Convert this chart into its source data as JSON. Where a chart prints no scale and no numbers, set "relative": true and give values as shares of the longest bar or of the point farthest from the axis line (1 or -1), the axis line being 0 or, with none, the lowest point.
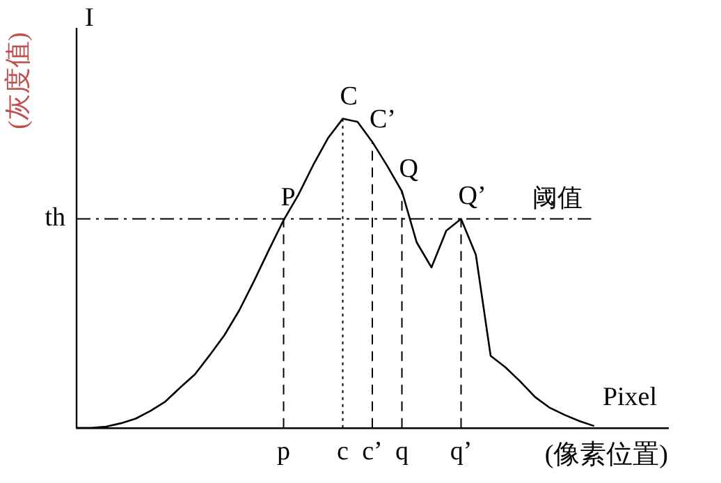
{
  "chart_data": {
    "type": "line",
    "relative": true,
    "xlabel": "(像素位置)",
    "ylabel": "(灰度值)",
    "categories": [
      null,
      null,
      null,
      null,
      null,
      null,
      null,
      null,
      null,
      null,
      null,
      null,
      null,
      null,
      "p",
      null,
      null,
      null,
      "c",
      null,
      "c’",
      null,
      "q",
      null,
      null,
      null,
      "q’",
      null,
      null,
      null,
      null,
      null,
      null,
      null,
      null,
      null,
      null,
      null,
      null,
      null,
      null
    ],
    "series": [
      {
        "color": "#000000",
        "values": [
          0,
          0,
          0.004,
          0.015,
          0.03,
          0.055,
          0.085,
          0.13,
          0.173,
          0.235,
          0.3,
          0.38,
          0.475,
          0.575,
          0.672,
          0.754,
          0.85,
          0.937,
          1,
          0.99,
          0.925,
          0.848,
          0.765,
          0.6,
          0.519,
          0.638,
          0.676,
          0.56,
          0.233,
          0.196,
          0.15,
          0.1,
          0.065,
          0.042,
          0.022,
          0.006,
          null,
          null,
          null,
          null,
          null
        ]
      }
    ],
    "ref_lines": [
      {
        "axis": "y",
        "value": 0.676,
        "label": "阈值",
        "line_style": "dashed",
        "color": "#000000"
      },
      {
        "axis": "x",
        "value": "p",
        "line_style": "dashed",
        "color": "#000000"
      },
      {
        "axis": "x",
        "value": "c",
        "line_style": "dotted",
        "color": "#000000"
      },
      {
        "axis": "x",
        "value": "c’",
        "line_style": "dashed",
        "color": "#000000"
      },
      {
        "axis": "x",
        "value": "q",
        "line_style": "dashed",
        "color": "#000000"
      },
      {
        "axis": "x",
        "value": "q’",
        "line_style": "dashed",
        "color": "#000000"
      }
    ],
    "annotations": [
      "th",
      "I",
      "Pixel",
      {
        "text": "P",
        "x": "p",
        "y": 0.672
      },
      {
        "text": "C",
        "x": "c",
        "y": 1
      },
      {
        "text": "C’",
        "x": "c’",
        "y": 0.925
      },
      {
        "text": "Q",
        "x": "q",
        "y": 0.765
      },
      {
        "text": "Q’",
        "x": "q’",
        "y": 0.676
      }
    ],
    "grid": false,
    "legend": false,
    "marker": "none",
    "line_style": "solid"
  }
}
